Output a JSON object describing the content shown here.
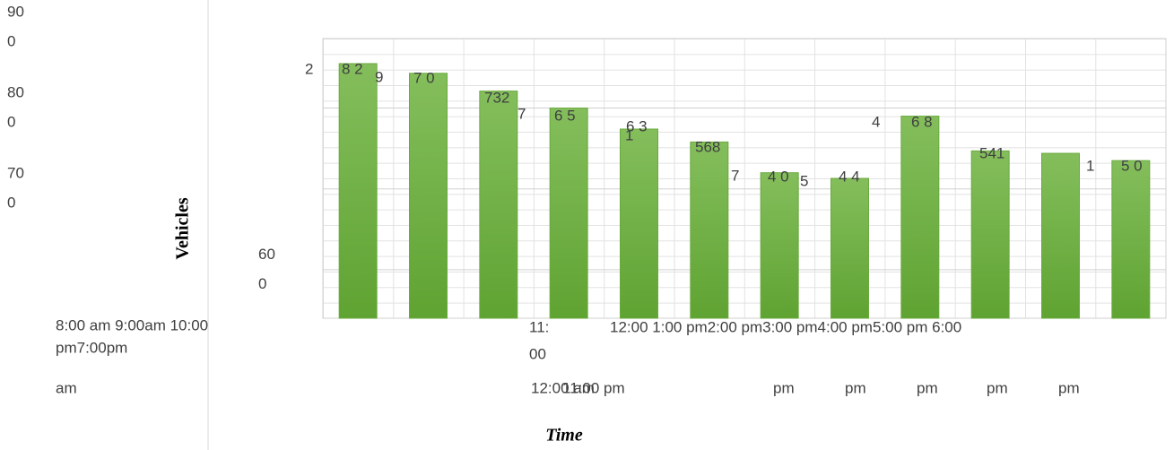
{
  "chart_data": {
    "type": "bar",
    "y_label": "Vehicles",
    "x_label": "Time",
    "values": [
      855,
      843,
      821,
      800,
      774,
      758,
      720,
      713,
      790,
      747,
      744,
      735
    ],
    "color": "#6aaa3e",
    "ylim": [
      540,
      886
    ],
    "yticks": [
      {
        "value": 600,
        "label": "60\n0"
      },
      {
        "value": 700,
        "label": "70\n0"
      },
      {
        "value": 800,
        "label": "80\n0"
      },
      {
        "value": 900,
        "label": "90\n0"
      }
    ],
    "grid": true,
    "annotations": [
      "2",
      "8 2",
      "9",
      "7 0",
      "732",
      "7",
      "6 5",
      "6 3",
      "1",
      "568",
      "7",
      "4 0",
      "5",
      "4 4",
      "4",
      "6 8",
      "541",
      "1",
      "5 0",
      "8:00 am 9:00am 10:00",
      "pm7:00pm",
      "am",
      "11:",
      "00",
      "12:00 1:00 pm2:00 pm3:00 pm4:00 pm5:00 pm 6:00",
      "12:00 am",
      "11:00 pm",
      "pm",
      "pm",
      "pm",
      "pm",
      "pm"
    ]
  }
}
